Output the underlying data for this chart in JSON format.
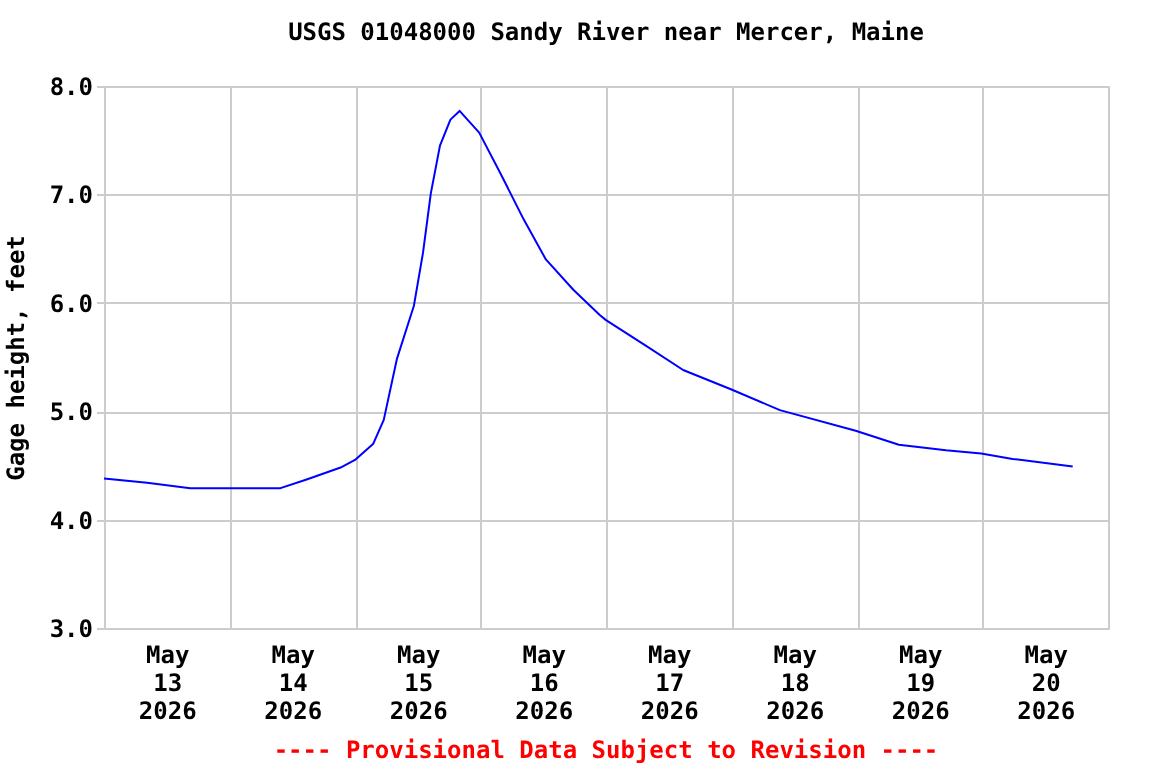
{
  "chart_data": {
    "type": "line",
    "title": "USGS 01048000 Sandy River near Mercer, Maine",
    "ylabel": "Gage height, feet",
    "annotations": [
      "---- Provisional Data Subject to Revision ----"
    ],
    "x": [
      "2026-05-13T00:00",
      "2026-05-13T08:15",
      "2026-05-13T16:30",
      "2026-05-14T09:45",
      "2026-05-14T14:45",
      "2026-05-14T21:15",
      "2026-05-15T00:00",
      "2026-05-15T03:30",
      "2026-05-15T05:30",
      "2026-05-15T08:00",
      "2026-05-15T11:15",
      "2026-05-15T13:00",
      "2026-05-15T14:30",
      "2026-05-15T16:15",
      "2026-05-15T18:15",
      "2026-05-15T20:00",
      "2026-05-15T23:45",
      "2026-05-16T03:45",
      "2026-05-16T08:15",
      "2026-05-16T12:30",
      "2026-05-16T17:45",
      "2026-05-16T22:45",
      "2026-05-17T00:00",
      "2026-05-17T07:45",
      "2026-05-17T14:45",
      "2026-05-18T00:00",
      "2026-05-18T09:15",
      "2026-05-18T23:45",
      "2026-05-19T08:00",
      "2026-05-19T17:00",
      "2026-05-19T23:45",
      "2026-05-20T05:45",
      "2026-05-20T17:15"
    ],
    "series": [
      {
        "color": "#0000ff",
        "values": [
          4.38,
          4.34,
          4.29,
          4.29,
          4.37,
          4.48,
          4.55,
          4.7,
          4.92,
          5.48,
          5.97,
          6.46,
          7.01,
          7.45,
          7.69,
          7.77,
          7.57,
          7.2,
          6.77,
          6.4,
          6.12,
          5.89,
          5.84,
          5.6,
          5.38,
          5.2,
          5.01,
          4.82,
          4.69,
          4.64,
          4.61,
          4.56,
          4.49
        ]
      }
    ],
    "xlim": [
      "2026-05-13T00:00",
      "2026-05-21T00:00"
    ],
    "xticks": [
      {
        "value": "2026-05-13T00:00",
        "label": null
      },
      {
        "value": "2026-05-13T12:00",
        "label": "May\n13\n2026"
      },
      {
        "value": "2026-05-14T00:00",
        "label": null
      },
      {
        "value": "2026-05-14T12:00",
        "label": "May\n14\n2026"
      },
      {
        "value": "2026-05-15T00:00",
        "label": null
      },
      {
        "value": "2026-05-15T12:00",
        "label": "May\n15\n2026"
      },
      {
        "value": "2026-05-16T00:00",
        "label": null
      },
      {
        "value": "2026-05-16T12:00",
        "label": "May\n16\n2026"
      },
      {
        "value": "2026-05-17T00:00",
        "label": null
      },
      {
        "value": "2026-05-17T12:00",
        "label": "May\n17\n2026"
      },
      {
        "value": "2026-05-18T00:00",
        "label": null
      },
      {
        "value": "2026-05-18T12:00",
        "label": "May\n18\n2026"
      },
      {
        "value": "2026-05-19T00:00",
        "label": null
      },
      {
        "value": "2026-05-19T12:00",
        "label": "May\n19\n2026"
      },
      {
        "value": "2026-05-20T00:00",
        "label": null
      },
      {
        "value": "2026-05-20T12:00",
        "label": "May\n20\n2026"
      },
      {
        "value": "2026-05-21T00:00",
        "label": null
      }
    ],
    "ylim": [
      3,
      8
    ],
    "yticks": [
      {
        "value": 3,
        "label": "3.0"
      },
      {
        "value": 4,
        "label": "4.0"
      },
      {
        "value": 5,
        "label": "5.0"
      },
      {
        "value": 6,
        "label": "6.0"
      },
      {
        "value": 7,
        "label": "7.0"
      },
      {
        "value": 8,
        "label": "8.0"
      }
    ],
    "grid": true,
    "marker": "none",
    "line_style": "solid"
  }
}
